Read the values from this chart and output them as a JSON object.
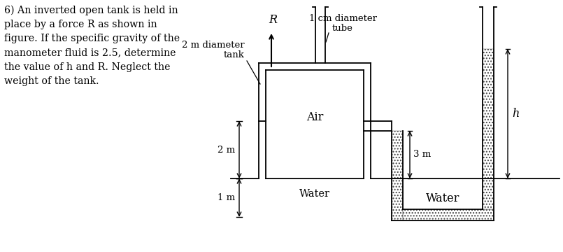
{
  "background_color": "#ffffff",
  "text_color": "#000000",
  "line_color": "#000000",
  "problem_text": "6) An inverted open tank is held in\nplace by a force R as shown in\nfigure. If the specific gravity of the\nmanometer fluid is 2.5, determine\nthe value of h and R. Neglect the\nweight of the tank.",
  "label_1cm": "1 cm diameter",
  "label_tube": "tube",
  "label_R": "R",
  "label_2m_diam": "2 m diameter",
  "label_tank": "tank",
  "label_Air": "Air",
  "label_3m": "3 m",
  "label_2m": "2 m",
  "label_1m": "1 m",
  "label_h": "h",
  "label_Water1": "Water",
  "label_Water2": "Water",
  "font_size_problem": 10.2,
  "font_size_labels": 9.5
}
